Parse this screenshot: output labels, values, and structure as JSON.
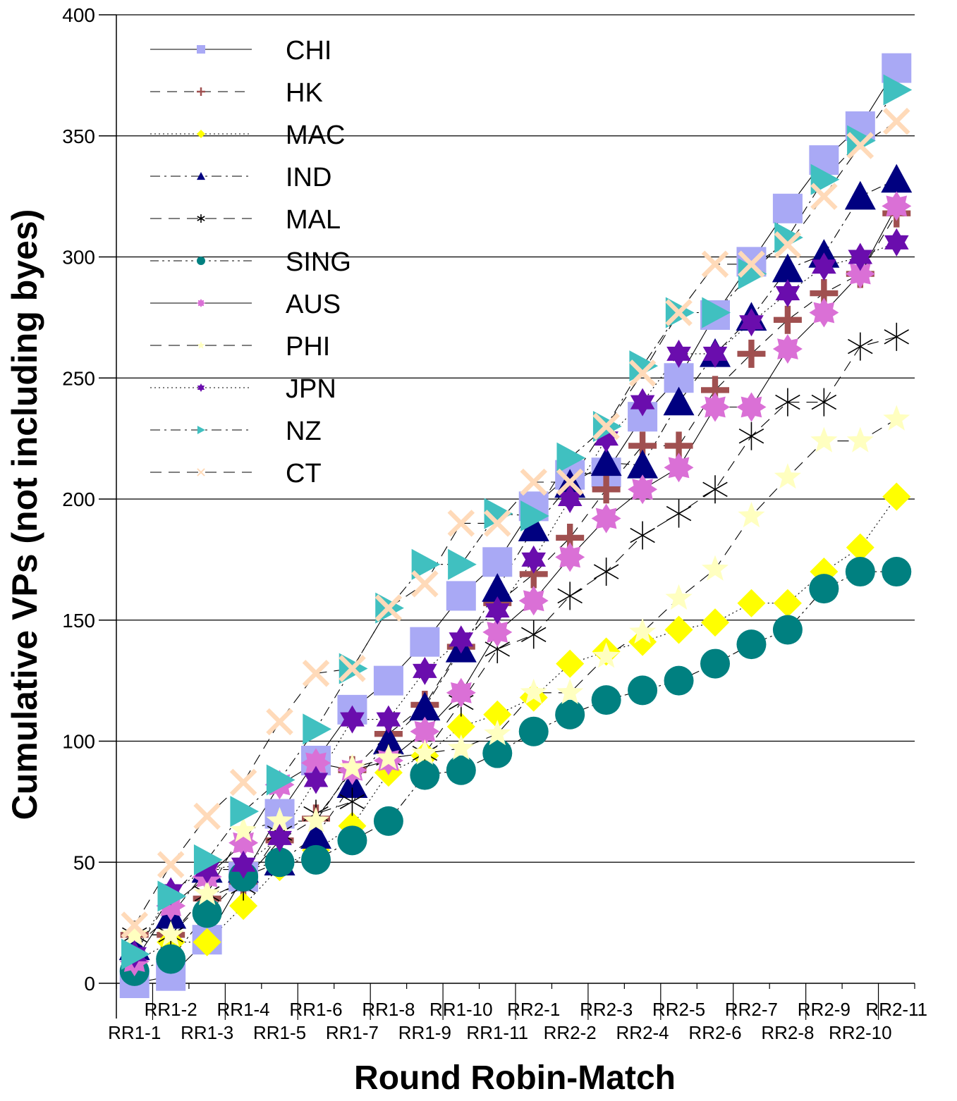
{
  "chart_data": {
    "type": "line",
    "title": "",
    "xlabel": "Round Robin-Match",
    "ylabel": "Cumulative VPs (not including byes)",
    "ylim": [
      0,
      400
    ],
    "yticks": [
      0,
      50,
      100,
      150,
      200,
      250,
      300,
      350,
      400
    ],
    "grid": "horizontal",
    "legend_position": "top-left",
    "categories": [
      "RR1-1",
      "RR1-2",
      "RR1-3",
      "RR1-4",
      "RR1-5",
      "RR1-6",
      "RR1-7",
      "RR1-8",
      "RR1-9",
      "RR1-10",
      "RR1-11",
      "RR2-1",
      "RR2-2",
      "RR2-3",
      "RR2-4",
      "RR2-5",
      "RR2-6",
      "RR2-7",
      "RR2-8",
      "RR2-9",
      "RR2-10",
      "RR2-11"
    ],
    "series": [
      {
        "name": "CHI",
        "marker": "square",
        "color": "#a9a9f5",
        "dash": "",
        "values": [
          0,
          3,
          18,
          44,
          70,
          92,
          113,
          125,
          141,
          160,
          174,
          197,
          210,
          211,
          234,
          250,
          276,
          298,
          320,
          340,
          354,
          378
        ]
      },
      {
        "name": "HK",
        "marker": "plus",
        "color": "#a05050",
        "dash": "14,10",
        "values": [
          20,
          20,
          35,
          42,
          59,
          68,
          88,
          103,
          115,
          139,
          157,
          169,
          184,
          204,
          222,
          222,
          245,
          260,
          274,
          285,
          293,
          318
        ]
      },
      {
        "name": "MAC",
        "marker": "diamond",
        "color": "#ffff00",
        "dash": "2,4",
        "values": [
          9,
          17,
          17,
          32,
          48,
          55,
          65,
          87,
          94,
          106,
          111,
          118,
          132,
          137,
          141,
          146,
          149,
          157,
          157,
          170,
          180,
          201
        ]
      },
      {
        "name": "IND",
        "marker": "triangle",
        "color": "#000080",
        "dash": "14,6,3,6",
        "values": [
          15,
          28,
          47,
          47,
          50,
          61,
          82,
          100,
          114,
          138,
          163,
          188,
          206,
          215,
          214,
          240,
          260,
          275,
          295,
          301,
          325,
          332
        ]
      },
      {
        "name": "MAL",
        "marker": "asterisk",
        "color": "#000000",
        "dash": "16,10",
        "values": [
          20,
          20,
          37,
          40,
          62,
          70,
          75,
          93,
          95,
          116,
          138,
          144,
          160,
          170,
          185,
          194,
          204,
          226,
          240,
          240,
          263,
          267
        ]
      },
      {
        "name": "SING",
        "marker": "circle",
        "color": "#008080",
        "dash": "12,5,3,5,3,5",
        "values": [
          5,
          10,
          29,
          44,
          50,
          51,
          59,
          67,
          86,
          88,
          95,
          104,
          111,
          117,
          121,
          125,
          132,
          140,
          146,
          163,
          170,
          170
        ]
      },
      {
        "name": "AUS",
        "marker": "star8",
        "color": "#da70d6",
        "dash": "",
        "values": [
          9,
          32,
          44,
          58,
          82,
          91,
          88,
          92,
          104,
          120,
          145,
          158,
          176,
          192,
          204,
          213,
          238,
          238,
          262,
          277,
          293,
          321
        ]
      },
      {
        "name": "PHI",
        "marker": "star5",
        "color": "#ffffc0",
        "dash": "16,10",
        "values": [
          20,
          20,
          37,
          63,
          67,
          67,
          89,
          93,
          95,
          97,
          103,
          120,
          120,
          135,
          145,
          159,
          171,
          193,
          209,
          224,
          224,
          233
        ]
      },
      {
        "name": "JPN",
        "marker": "star6",
        "color": "#6a0dad",
        "dash": "2,4",
        "values": [
          12,
          38,
          47,
          49,
          60,
          84,
          109,
          109,
          129,
          142,
          154,
          175,
          200,
          225,
          240,
          260,
          260,
          273,
          285,
          296,
          300,
          306
        ]
      },
      {
        "name": "NZ",
        "marker": "tri-right",
        "color": "#40c0c0",
        "dash": "14,6,3,6",
        "values": [
          12,
          36,
          51,
          71,
          84,
          105,
          130,
          155,
          173,
          173,
          194,
          193,
          217,
          230,
          255,
          277,
          277,
          293,
          308,
          332,
          348,
          369
        ]
      },
      {
        "name": "CT",
        "marker": "cross",
        "color": "#ffdab9",
        "dash": "16,10",
        "values": [
          24,
          49,
          69,
          83,
          108,
          128,
          130,
          155,
          165,
          190,
          190,
          207,
          207,
          230,
          252,
          277,
          297,
          297,
          305,
          325,
          346,
          356
        ]
      }
    ]
  }
}
